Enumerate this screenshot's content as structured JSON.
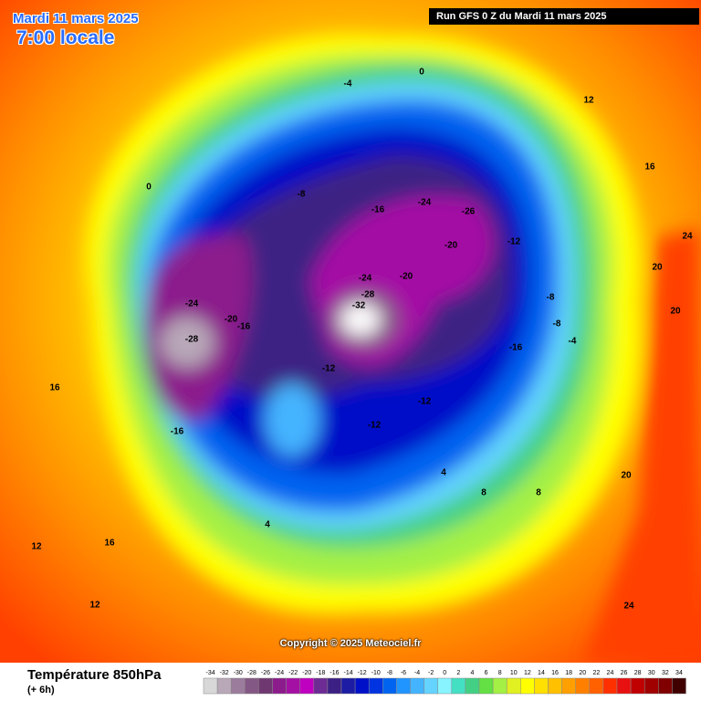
{
  "header": {
    "date": "Mardi 11 mars 2025",
    "time": "7:00 locale",
    "run": "Run GFS 0 Z du Mardi 11 mars 2025"
  },
  "copyright": "Copyright © 2025 Meteociel.fr",
  "legend": {
    "title": "Température 850hPa",
    "subtitle": "(+ 6h)",
    "scale": [
      {
        "value": -34,
        "color": "#d8d8d8"
      },
      {
        "value": -32,
        "color": "#b8a8b8"
      },
      {
        "value": -30,
        "color": "#9c7c9c"
      },
      {
        "value": -28,
        "color": "#845884"
      },
      {
        "value": -26,
        "color": "#703870"
      },
      {
        "value": -24,
        "color": "#8c1c8c"
      },
      {
        "value": -22,
        "color": "#a410a4"
      },
      {
        "value": -20,
        "color": "#c000c0"
      },
      {
        "value": -18,
        "color": "#6c2c94"
      },
      {
        "value": -16,
        "color": "#3c2084"
      },
      {
        "value": -14,
        "color": "#1c1ca4"
      },
      {
        "value": -12,
        "color": "#0010c8"
      },
      {
        "value": -10,
        "color": "#0034e0"
      },
      {
        "value": -8,
        "color": "#0064f0"
      },
      {
        "value": -6,
        "color": "#2094ff"
      },
      {
        "value": -4,
        "color": "#44b4ff"
      },
      {
        "value": -2,
        "color": "#64d4ff"
      },
      {
        "value": 0,
        "color": "#88f4ff"
      },
      {
        "value": 2,
        "color": "#44e0c4"
      },
      {
        "value": 4,
        "color": "#44d084"
      },
      {
        "value": 6,
        "color": "#64e044"
      },
      {
        "value": 8,
        "color": "#a4f044"
      },
      {
        "value": 10,
        "color": "#e0f020"
      },
      {
        "value": 12,
        "color": "#ffff00"
      },
      {
        "value": 14,
        "color": "#ffe000"
      },
      {
        "value": 16,
        "color": "#ffc000"
      },
      {
        "value": 18,
        "color": "#ffa000"
      },
      {
        "value": 20,
        "color": "#ff8000"
      },
      {
        "value": 22,
        "color": "#ff6000"
      },
      {
        "value": 24,
        "color": "#ff3000"
      },
      {
        "value": 26,
        "color": "#e81010"
      },
      {
        "value": 28,
        "color": "#c00000"
      },
      {
        "value": 30,
        "color": "#a00000"
      },
      {
        "value": 32,
        "color": "#800000"
      },
      {
        "value": 34,
        "color": "#400000"
      }
    ]
  },
  "map": {
    "labels": [
      "-32",
      "-28",
      "-24",
      "-20",
      "-24",
      "-28",
      "-16",
      "-20",
      "-16",
      "-12",
      "-12",
      "-16",
      "-8",
      "-8",
      "-12",
      "-24",
      "-26",
      "-20",
      "-16",
      "-12",
      "-8",
      "-4",
      "0",
      "4",
      "8",
      "12",
      "16",
      "20",
      "24",
      "20",
      "16",
      "12",
      "8",
      "4",
      "12",
      "16",
      "20",
      "24",
      "-4",
      "0"
    ]
  }
}
